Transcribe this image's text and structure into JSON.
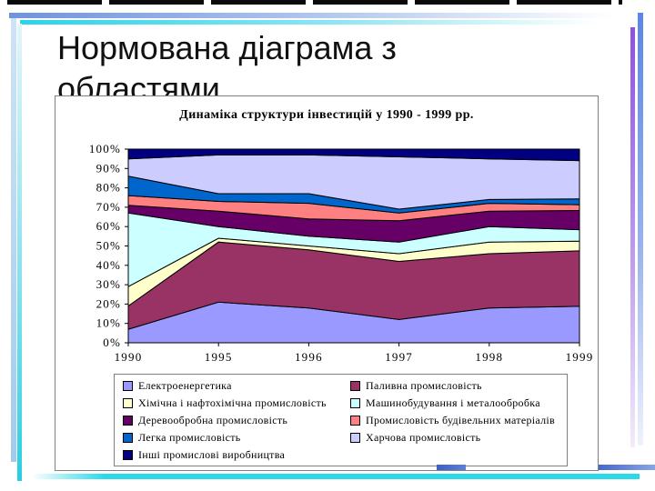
{
  "slide": {
    "title": "Нормована діаграма з областями"
  },
  "chart_data": {
    "type": "area",
    "stacking": "percent",
    "title": "Динаміка структури інвестицій у 1990 - 1999 рр.",
    "categories": [
      "1990",
      "1995",
      "1996",
      "1997",
      "1998",
      "1999"
    ],
    "series": [
      {
        "name": "Електроенергетика",
        "color": "#9999FF",
        "values": [
          7,
          21,
          18,
          12,
          18,
          19
        ]
      },
      {
        "name": "Паливна промисловість",
        "color": "#993366",
        "values": [
          12,
          31,
          30,
          30,
          28,
          29
        ]
      },
      {
        "name": "Хімічна і нафтохімічна промисловість",
        "color": "#FFFFCC",
        "values": [
          10,
          2,
          2,
          4,
          6,
          5
        ]
      },
      {
        "name": "Машинобудування і металообробка",
        "color": "#CCFFFF",
        "values": [
          38,
          6,
          5,
          6,
          8,
          6
        ]
      },
      {
        "name": "Деревообробна промисловість",
        "color": "#660066",
        "values": [
          4,
          8,
          9,
          11,
          8,
          10
        ]
      },
      {
        "name": "Промисловість будівельних матеріалів",
        "color": "#FF8080",
        "values": [
          5,
          5,
          8,
          4,
          4,
          3
        ]
      },
      {
        "name": "Легка промисловість",
        "color": "#0066CC",
        "values": [
          10,
          4,
          5,
          2,
          2,
          3
        ]
      },
      {
        "name": "Харчова промисловість",
        "color": "#CCCCFF",
        "values": [
          9,
          20,
          20,
          27,
          21,
          20
        ]
      },
      {
        "name": "Інші промислові виробництва",
        "color": "#000080",
        "values": [
          5,
          3,
          3,
          4,
          5,
          6
        ]
      }
    ],
    "y_axis": {
      "min": 0,
      "max": 100,
      "tick_step": 10,
      "tick_labels": [
        "0%",
        "10%",
        "20%",
        "30%",
        "40%",
        "50%",
        "60%",
        "70%",
        "80%",
        "90%",
        "100%"
      ]
    },
    "x_axis": {
      "tick_labels": [
        "1990",
        "1995",
        "1996",
        "1997",
        "1998",
        "1999"
      ]
    },
    "grid": false,
    "legend_position": "bottom",
    "legend_columns": 2
  },
  "decor": {
    "top_dash_color": "#0a0a0a",
    "horizontal_bar_blue": "#6f93da",
    "horizontal_bar_cyan": "#2ad4e8",
    "left_bar_blue": "#a3cbe9",
    "left_bar_cyan": "#27cfe2",
    "right_bar_blue": "#5b86e8",
    "right_bar_purple": "#8f50e0",
    "bottom_bar_blue": "#3a5fc8",
    "bottom_bar_cyan": "#2bd9e8",
    "chart_border": "#808080"
  }
}
